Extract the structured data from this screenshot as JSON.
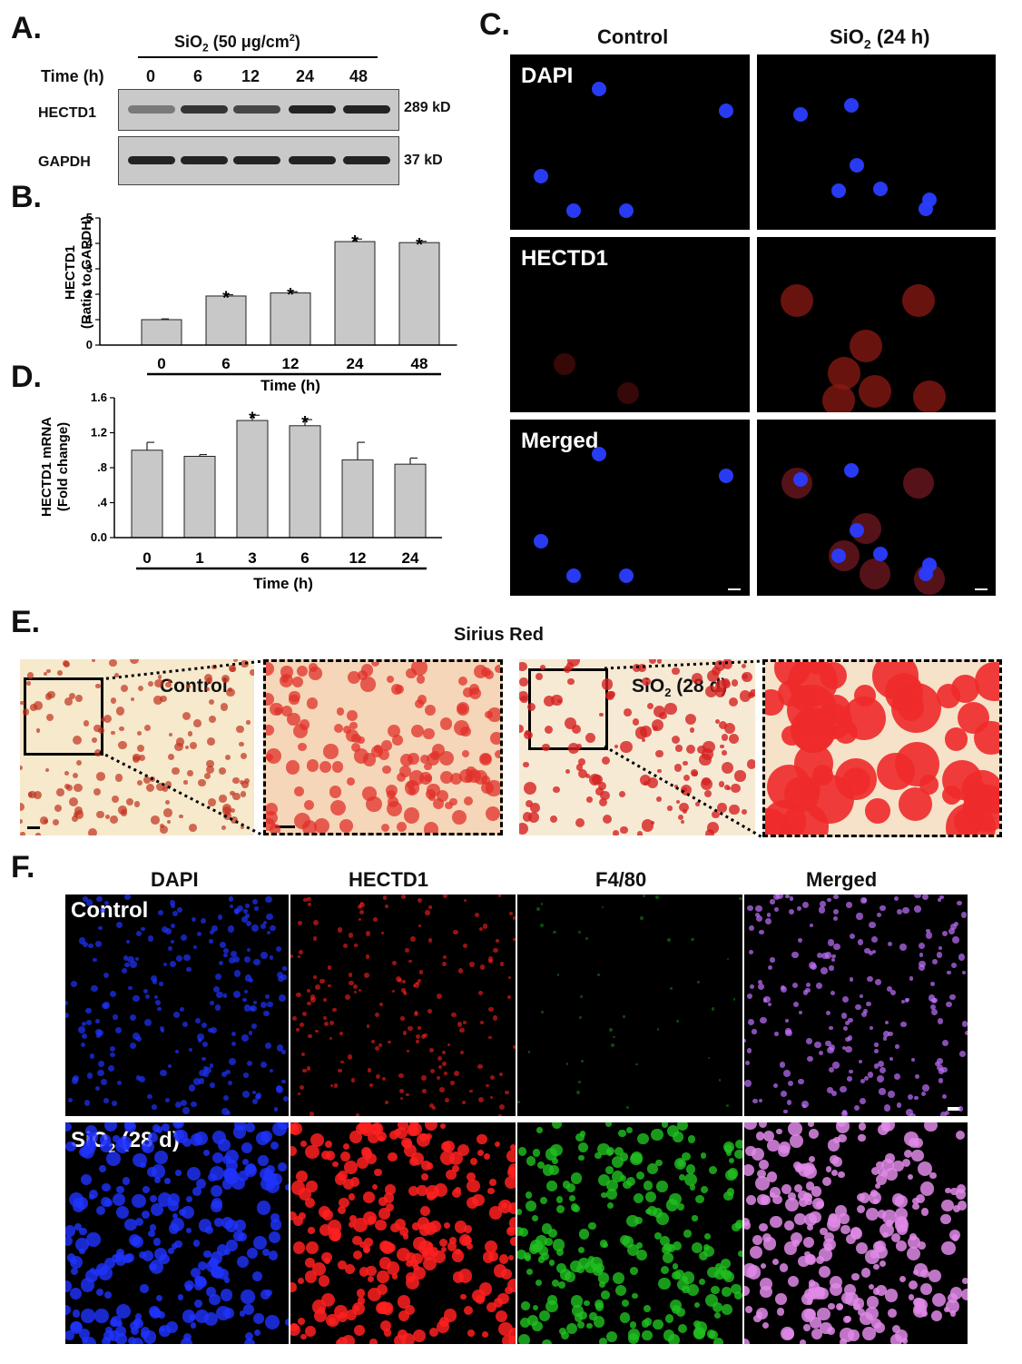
{
  "panel_letters": {
    "a": "A.",
    "b": "B.",
    "c": "C.",
    "d": "D.",
    "e": "E.",
    "f": "F."
  },
  "panel_a": {
    "treatment_prefix": "SiO",
    "treatment_sub": "2",
    "treatment_suffix": " (50 μg/cm",
    "treatment_sup": "2",
    "treatment_end": ")",
    "time_label": "Time (h)",
    "timepoints": [
      "0",
      "6",
      "12",
      "24",
      "48"
    ],
    "rows": [
      {
        "protein": "HECTD1",
        "size": "289 kD",
        "band_intensity": [
          0.45,
          0.85,
          0.75,
          0.95,
          0.95
        ]
      },
      {
        "protein": "GAPDH",
        "size": "37 kD",
        "band_intensity": [
          0.95,
          0.95,
          0.95,
          0.95,
          0.95
        ]
      }
    ]
  },
  "panel_c": {
    "col_headers": [
      "Control",
      "SiO2 (24 h)"
    ],
    "col2_prefix": "SiO",
    "col2_sub": "2",
    "col2_suffix": " (24 h)",
    "row_labels": [
      "DAPI",
      "HECTD1",
      "Merged"
    ]
  },
  "panel_e": {
    "title": "Sirius Red",
    "control_label": "Control",
    "sio2_prefix": "SiO",
    "sio2_sub": "2",
    "sio2_suffix": " (28 d)"
  },
  "panel_f": {
    "col_headers": [
      "DAPI",
      "HECTD1",
      "F4/80",
      "Merged"
    ],
    "row1_label": "Control",
    "row2_prefix": "SiO",
    "row2_sub": "2",
    "row2_suffix": " (28 d)",
    "colors": [
      "#1f33ff",
      "#ff2020",
      "#20c020",
      "#c070ff"
    ]
  },
  "chart_data": [
    {
      "type": "bar",
      "panel": "B",
      "categories": [
        "0",
        "6",
        "12",
        "24",
        "48"
      ],
      "values": [
        1.0,
        1.93,
        2.05,
        4.07,
        4.03
      ],
      "errors": [
        0.03,
        0.05,
        0.05,
        0.1,
        0.05
      ],
      "significant": [
        false,
        true,
        true,
        true,
        true
      ],
      "ylabel_line1": "HECTD1",
      "ylabel_line2": "(Ratio to GAPDH)",
      "xlabel": "Time (h)",
      "yticks": [
        "0",
        "1",
        "2",
        "3",
        "4",
        "5"
      ],
      "ylim": [
        0,
        5
      ],
      "bar_color": "#c8c8c8",
      "grid": false
    },
    {
      "type": "bar",
      "panel": "D",
      "categories": [
        "0",
        "1",
        "3",
        "6",
        "12",
        "24"
      ],
      "values": [
        1.0,
        0.93,
        1.34,
        1.28,
        0.89,
        0.84
      ],
      "errors": [
        0.09,
        0.02,
        0.06,
        0.07,
        0.2,
        0.07
      ],
      "significant": [
        false,
        false,
        true,
        true,
        false,
        false
      ],
      "ylabel_line1": "HECTD1 mRNA",
      "ylabel_line2": "(Fold change)",
      "xlabel": "Time (h)",
      "yticks": [
        "0.0",
        ".4",
        ".8",
        "1.2",
        "1.6"
      ],
      "ylim": [
        0,
        1.6
      ],
      "bar_color": "#c8c8c8",
      "grid": false
    }
  ]
}
